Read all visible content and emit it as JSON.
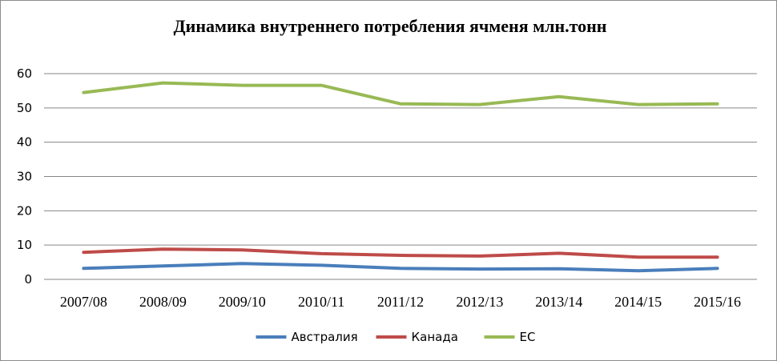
{
  "chart_data": {
    "type": "line",
    "title": "Динамика внутреннего потребления ячменя млн.тонн",
    "xlabel": "",
    "ylabel": "",
    "ylim": [
      0,
      60
    ],
    "yticks": [
      "0",
      "10",
      "20",
      "30",
      "40",
      "50",
      "60"
    ],
    "grid": true,
    "legend_placement": "bottom-center",
    "categories": [
      "2007/08",
      "2008/09",
      "2009/10",
      "2010/11",
      "2011/12",
      "2012/13",
      "2013/14",
      "2014/15",
      "2015/16"
    ],
    "series": [
      {
        "name": "Австралия",
        "color": "#4a7ebb",
        "values": [
          3.2,
          3.9,
          4.6,
          4.1,
          3.2,
          3.0,
          3.1,
          2.5,
          3.2
        ]
      },
      {
        "name": "Канада",
        "color": "#be4b48",
        "values": [
          7.9,
          8.8,
          8.6,
          7.5,
          7.0,
          6.8,
          7.6,
          6.5,
          6.5
        ]
      },
      {
        "name": "ЕС",
        "color": "#98b954",
        "values": [
          54.5,
          57.3,
          56.6,
          56.6,
          51.2,
          51.0,
          53.3,
          51.0,
          51.2
        ]
      }
    ]
  }
}
